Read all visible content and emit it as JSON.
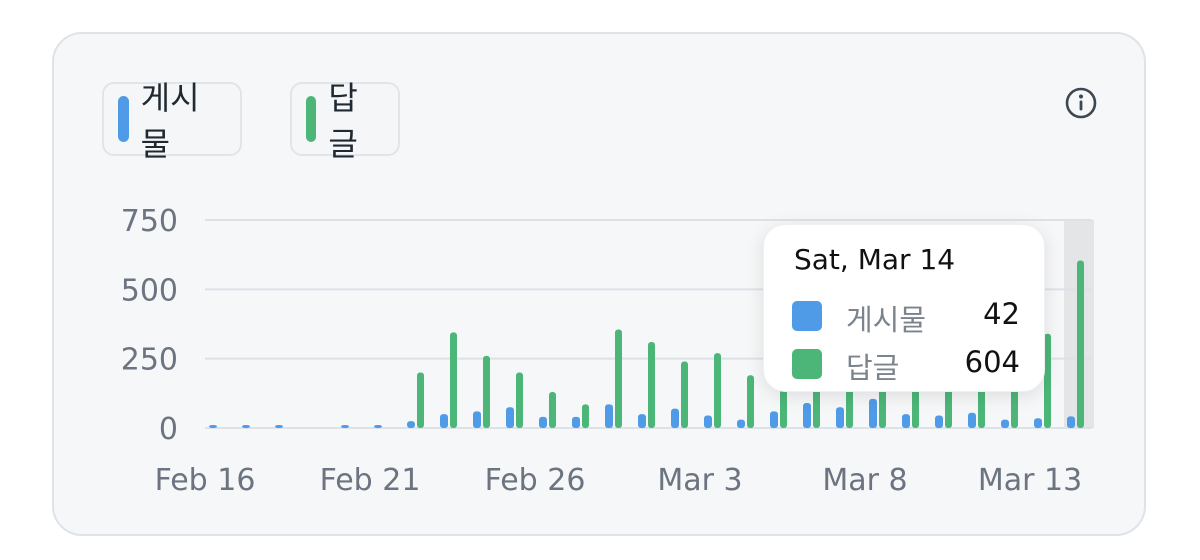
{
  "legend": [
    {
      "label": "게시물",
      "color": "#4f9be8"
    },
    {
      "label": "답글",
      "color": "#4cb678"
    }
  ],
  "info_icon": "info-circle-icon",
  "tooltip": {
    "date": "Sat, Mar 14",
    "rows": [
      {
        "label": "게시물",
        "value": "42",
        "color": "#4f9be8"
      },
      {
        "label": "답글",
        "value": "604",
        "color": "#4cb678"
      }
    ]
  },
  "chart_data": {
    "type": "bar",
    "categories": [
      "Feb 16",
      "Feb 17",
      "Feb 18",
      "Feb 19",
      "Feb 20",
      "Feb 21",
      "Feb 22",
      "Feb 23",
      "Feb 24",
      "Feb 25",
      "Feb 26",
      "Feb 27",
      "Feb 28",
      "Mar 1",
      "Mar 2",
      "Mar 3",
      "Mar 4",
      "Mar 5",
      "Mar 6",
      "Mar 7",
      "Mar 8",
      "Mar 9",
      "Mar 10",
      "Mar 11",
      "Mar 12",
      "Mar 13",
      "Mar 14"
    ],
    "series": [
      {
        "name": "게시물",
        "color": "#4f9be8",
        "values": [
          2,
          2,
          1,
          0,
          3,
          5,
          25,
          50,
          60,
          75,
          40,
          40,
          85,
          50,
          70,
          45,
          30,
          60,
          90,
          75,
          105,
          50,
          45,
          55,
          30,
          35,
          42
        ]
      },
      {
        "name": "답글",
        "color": "#4cb678",
        "values": [
          0,
          0,
          0,
          0,
          0,
          0,
          200,
          345,
          260,
          200,
          130,
          85,
          355,
          310,
          240,
          270,
          190,
          150,
          140,
          160,
          290,
          210,
          170,
          200,
          210,
          340,
          604
        ]
      }
    ],
    "x_tick_labels": [
      "Feb 16",
      "Feb 21",
      "Feb 26",
      "Mar 3",
      "Mar 8",
      "Mar 13"
    ],
    "y_ticks": [
      0,
      250,
      500,
      750
    ],
    "ylim": [
      0,
      750
    ],
    "grid": true,
    "highlighted_category": "Mar 14"
  }
}
